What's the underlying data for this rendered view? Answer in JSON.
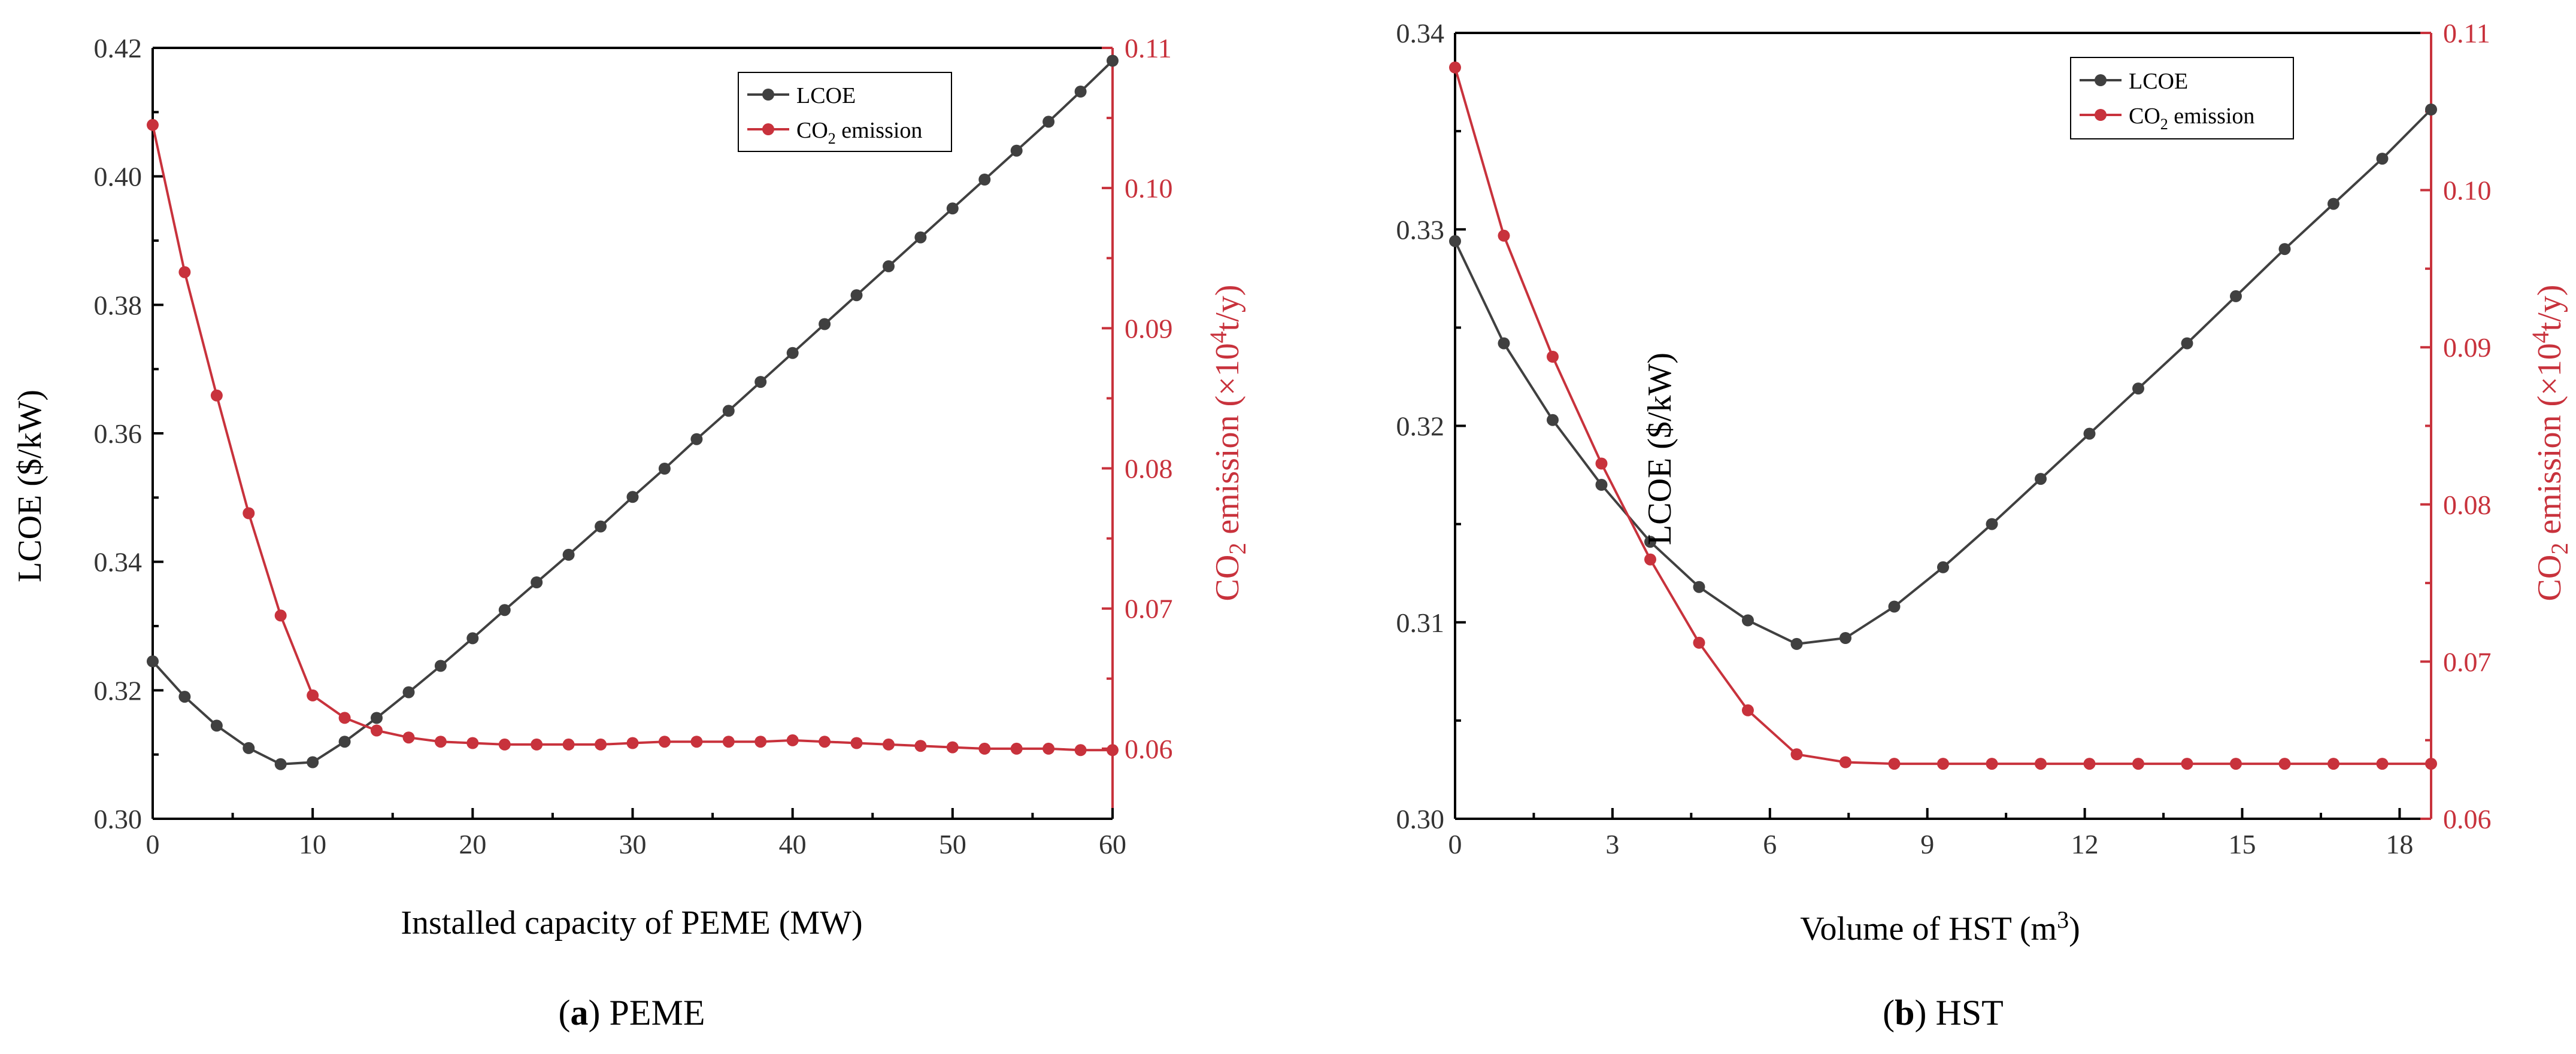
{
  "chart_data": [
    {
      "type": "line",
      "caption_letter": "(a)",
      "caption_bold": "a",
      "caption_text": " PEME",
      "xlabel": "Installed capacity of PEME (MW)",
      "ylabel": "LCOE ($/kW)",
      "y2label_pre": "CO",
      "y2label_sub": "2",
      "y2label_post": " emission (×10",
      "y2label_sup": "4",
      "y2label_end": "t/y)",
      "xlim": [
        0,
        60
      ],
      "ylim": [
        0.3,
        0.42
      ],
      "y2lim": [
        0.055,
        0.11
      ],
      "xticks": [
        "0",
        "10",
        "20",
        "30",
        "40",
        "50",
        "60"
      ],
      "yticks": [
        "0.30",
        "0.32",
        "0.34",
        "0.36",
        "0.38",
        "0.40",
        "0.42"
      ],
      "y2ticks": [
        "0.06",
        "0.07",
        "0.08",
        "0.09",
        "0.10",
        "0.11"
      ],
      "legend": [
        "LCOE",
        "CO2 emission"
      ],
      "legend_co2_pre": "CO",
      "legend_co2_sub": "2",
      "legend_co2_post": " emission",
      "series": [
        {
          "name": "LCOE",
          "axis": "left",
          "color": "#404040",
          "x": [
            0,
            2,
            4,
            6,
            8,
            10,
            12,
            14,
            16,
            18,
            20,
            22,
            24,
            26,
            28,
            30,
            32,
            34,
            36,
            38,
            40,
            42,
            44,
            46,
            48,
            50,
            52,
            54,
            56,
            58,
            60
          ],
          "values": [
            0.3245,
            0.319,
            0.3145,
            0.311,
            0.3085,
            0.3088,
            0.312,
            0.3157,
            0.3197,
            0.3238,
            0.3281,
            0.3325,
            0.3368,
            0.3411,
            0.3455,
            0.3501,
            0.3545,
            0.3591,
            0.3635,
            0.368,
            0.3725,
            0.377,
            0.3815,
            0.386,
            0.3905,
            0.395,
            0.3995,
            0.404,
            0.4085,
            0.4132,
            0.418
          ]
        },
        {
          "name": "CO2 emission",
          "axis": "right",
          "color": "#c8323c",
          "x": [
            0,
            2,
            4,
            6,
            8,
            10,
            12,
            14,
            16,
            18,
            20,
            22,
            24,
            26,
            28,
            30,
            32,
            34,
            36,
            38,
            40,
            42,
            44,
            46,
            48,
            50,
            52,
            54,
            56,
            58,
            60
          ],
          "values": [
            0.1045,
            0.094,
            0.0852,
            0.0768,
            0.0695,
            0.0638,
            0.0622,
            0.0613,
            0.0608,
            0.0605,
            0.0604,
            0.0603,
            0.0603,
            0.0603,
            0.0603,
            0.0604,
            0.0605,
            0.0605,
            0.0605,
            0.0605,
            0.0606,
            0.0605,
            0.0604,
            0.0603,
            0.0602,
            0.0601,
            0.06,
            0.06,
            0.06,
            0.0599,
            0.0599
          ]
        }
      ]
    },
    {
      "type": "line",
      "caption_letter": "(b)",
      "caption_bold": "b",
      "caption_text": " HST",
      "xlabel_pre": "Volume of HST (m",
      "xlabel_sup": "3",
      "xlabel_post": ")",
      "ylabel": "LCOE ($/kW)",
      "y2label_pre": "CO",
      "y2label_sub": "2",
      "y2label_post": " emission (×10",
      "y2label_sup": "4",
      "y2label_end": "t/y)",
      "xlim": [
        0,
        18.6
      ],
      "ylim": [
        0.3,
        0.34
      ],
      "y2lim": [
        0.06,
        0.11
      ],
      "xticks": [
        "0",
        "3",
        "6",
        "9",
        "12",
        "15",
        "18"
      ],
      "yticks": [
        "0.30",
        "0.31",
        "0.32",
        "0.33",
        "0.34"
      ],
      "y2ticks": [
        "0.06",
        "0.07",
        "0.08",
        "0.09",
        "0.10",
        "0.11"
      ],
      "legend": [
        "LCOE",
        "CO2 emission"
      ],
      "legend_co2_pre": "CO",
      "legend_co2_sub": "2",
      "legend_co2_post": " emission",
      "series": [
        {
          "name": "LCOE",
          "axis": "left",
          "color": "#404040",
          "x": [
            0,
            0.93,
            1.86,
            2.79,
            3.72,
            4.65,
            5.58,
            6.51,
            7.44,
            8.37,
            9.3,
            10.23,
            11.16,
            12.09,
            13.02,
            13.95,
            14.88,
            15.81,
            16.74,
            17.67,
            18.6
          ],
          "values": [
            0.3294,
            0.3242,
            0.3203,
            0.317,
            0.3141,
            0.3118,
            0.3101,
            0.3089,
            0.3092,
            0.3108,
            0.3128,
            0.315,
            0.3173,
            0.3196,
            0.3219,
            0.3242,
            0.3266,
            0.329,
            0.3313,
            0.3336,
            0.3361
          ]
        },
        {
          "name": "CO2 emission",
          "axis": "right",
          "color": "#c8323c",
          "x": [
            0,
            0.93,
            1.86,
            2.79,
            3.72,
            4.65,
            5.58,
            6.51,
            7.44,
            8.37,
            9.3,
            10.23,
            11.16,
            12.09,
            13.02,
            13.95,
            14.88,
            15.81,
            16.74,
            17.67,
            18.6
          ],
          "values": [
            0.1078,
            0.0971,
            0.0894,
            0.0826,
            0.0765,
            0.0712,
            0.0669,
            0.0641,
            0.0636,
            0.0635,
            0.0635,
            0.0635,
            0.0635,
            0.0635,
            0.0635,
            0.0635,
            0.0635,
            0.0635,
            0.0635,
            0.0635,
            0.0635
          ]
        }
      ]
    }
  ]
}
